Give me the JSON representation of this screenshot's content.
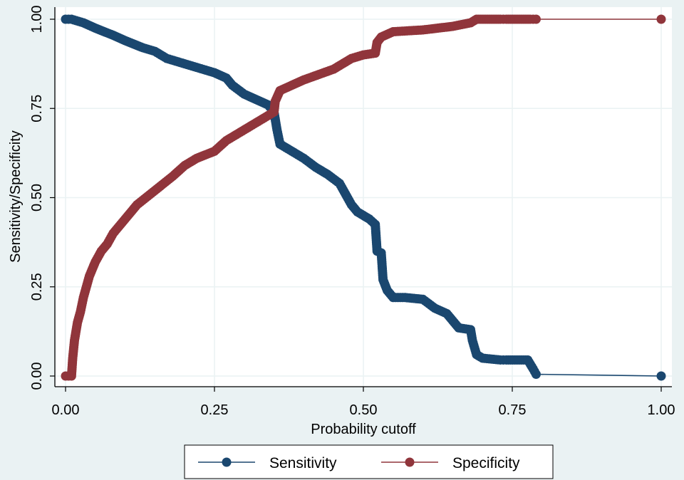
{
  "chart_data": {
    "type": "line",
    "xlabel": "Probability cutoff",
    "ylabel": "Sensitivity/Specificity",
    "xlim": [
      0,
      1
    ],
    "ylim": [
      0,
      1
    ],
    "xticks": [
      "0.00",
      "0.25",
      "0.50",
      "0.75",
      "1.00"
    ],
    "yticks": [
      "0.00",
      "0.25",
      "0.50",
      "0.75",
      "1.00"
    ],
    "grid": true,
    "legend_position": "bottom",
    "series": [
      {
        "name": "Sensitivity",
        "color": "#1a476f",
        "x": [
          0,
          0.01,
          0.03,
          0.05,
          0.08,
          0.1,
          0.13,
          0.15,
          0.17,
          0.2,
          0.22,
          0.25,
          0.27,
          0.28,
          0.3,
          0.32,
          0.34,
          0.35,
          0.355,
          0.36,
          0.38,
          0.4,
          0.42,
          0.44,
          0.46,
          0.47,
          0.48,
          0.49,
          0.51,
          0.52,
          0.523,
          0.53,
          0.533,
          0.54,
          0.55,
          0.57,
          0.6,
          0.62,
          0.64,
          0.65,
          0.66,
          0.68,
          0.683,
          0.69,
          0.7,
          0.73,
          0.74,
          0.776,
          0.785,
          0.79,
          1
        ],
        "y": [
          1,
          1,
          0.99,
          0.975,
          0.955,
          0.94,
          0.92,
          0.91,
          0.89,
          0.875,
          0.865,
          0.85,
          0.835,
          0.815,
          0.79,
          0.775,
          0.76,
          0.74,
          0.69,
          0.65,
          0.63,
          0.61,
          0.585,
          0.565,
          0.54,
          0.51,
          0.48,
          0.46,
          0.44,
          0.425,
          0.35,
          0.345,
          0.27,
          0.24,
          0.22,
          0.22,
          0.215,
          0.19,
          0.175,
          0.155,
          0.135,
          0.13,
          0.1,
          0.06,
          0.05,
          0.045,
          0.045,
          0.045,
          0.02,
          0.005,
          0
        ]
      },
      {
        "name": "Specificity",
        "color": "#90353b",
        "x": [
          0,
          0.01,
          0.012,
          0.015,
          0.02,
          0.025,
          0.03,
          0.035,
          0.04,
          0.05,
          0.06,
          0.07,
          0.08,
          0.1,
          0.12,
          0.15,
          0.18,
          0.2,
          0.22,
          0.25,
          0.27,
          0.3,
          0.33,
          0.35,
          0.352,
          0.36,
          0.4,
          0.45,
          0.48,
          0.5,
          0.52,
          0.523,
          0.53,
          0.55,
          0.6,
          0.65,
          0.68,
          0.69,
          0.73,
          0.74,
          0.78,
          0.79,
          1
        ],
        "y": [
          0,
          0,
          0.05,
          0.1,
          0.15,
          0.18,
          0.22,
          0.25,
          0.28,
          0.32,
          0.35,
          0.37,
          0.4,
          0.44,
          0.48,
          0.52,
          0.56,
          0.59,
          0.61,
          0.63,
          0.66,
          0.69,
          0.72,
          0.74,
          0.77,
          0.8,
          0.83,
          0.86,
          0.89,
          0.9,
          0.905,
          0.935,
          0.95,
          0.965,
          0.97,
          0.98,
          0.99,
          1,
          1,
          1,
          1,
          1,
          1
        ]
      }
    ]
  }
}
